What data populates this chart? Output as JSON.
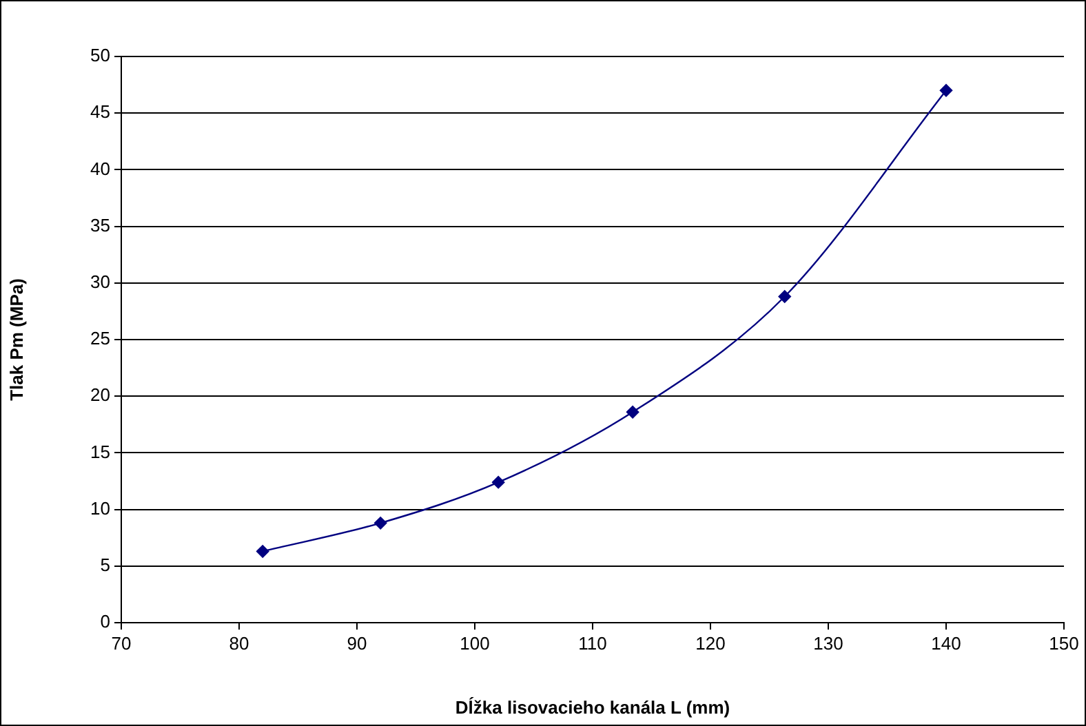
{
  "chart_data": {
    "type": "line",
    "xlabel": "Dĺžka lisovacieho kanála L (mm)",
    "ylabel": "Tlak Pm (MPa)",
    "x": [
      82,
      92,
      102,
      113.4,
      126.3,
      140
    ],
    "series": [
      {
        "color": "#000080",
        "values": [
          6.3,
          8.8,
          12.4,
          18.6,
          28.8,
          47
        ]
      }
    ],
    "xlim": [
      70,
      150
    ],
    "xticks": [
      70,
      80,
      90,
      100,
      110,
      120,
      130,
      140,
      150
    ],
    "ylim": [
      0,
      50
    ],
    "yticks": [
      0,
      5,
      10,
      15,
      20,
      25,
      30,
      35,
      40,
      45,
      50
    ],
    "grid": "y",
    "marker": "diamond",
    "line_style": "solid",
    "legend": false
  }
}
